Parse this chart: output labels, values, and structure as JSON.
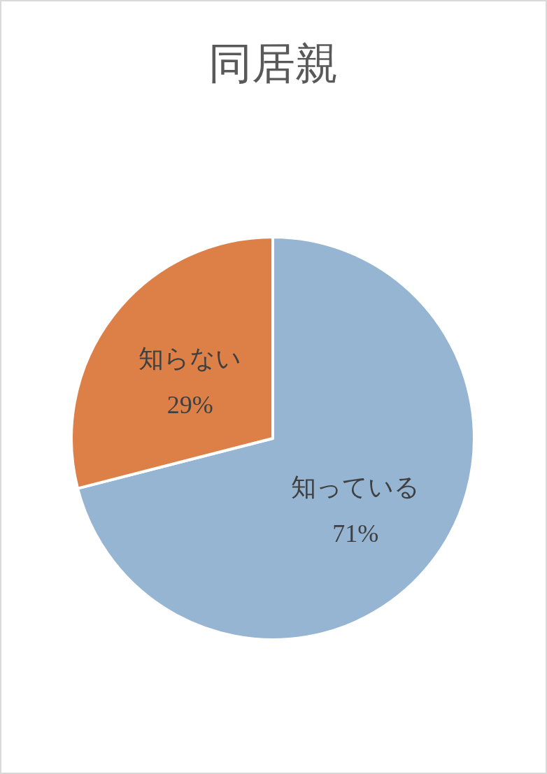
{
  "chart_data": {
    "type": "pie",
    "title": "同居親",
    "categories": [
      "知っている",
      "知らない"
    ],
    "values": [
      71,
      29
    ],
    "colors": [
      "#95b5d3",
      "#dd8048"
    ],
    "value_labels": [
      "71%",
      "29%"
    ]
  }
}
